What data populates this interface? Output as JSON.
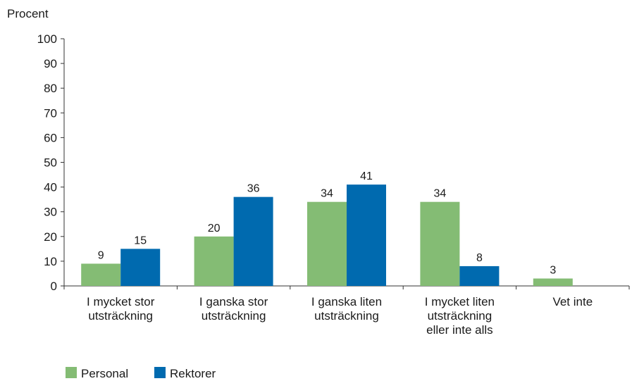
{
  "chart_data": {
    "type": "bar",
    "ylabel": "Procent",
    "ylim": [
      0,
      100
    ],
    "yticks": [
      0,
      10,
      20,
      30,
      40,
      50,
      60,
      70,
      80,
      90,
      100
    ],
    "categories": [
      [
        "I mycket stor",
        "utsträckning"
      ],
      [
        "I ganska stor",
        "utsträckning"
      ],
      [
        "I ganska liten",
        "utsträckning"
      ],
      [
        "I mycket liten",
        "utsträckning",
        "eller inte alls"
      ],
      [
        "Vet inte"
      ]
    ],
    "series": [
      {
        "name": "Personal",
        "color": "#84bc74",
        "values": [
          9,
          20,
          34,
          34,
          3
        ]
      },
      {
        "name": "Rektorer",
        "color": "#006aaf",
        "values": [
          15,
          36,
          41,
          8,
          null
        ]
      }
    ],
    "legend_position": "bottom-left",
    "grid": false
  }
}
